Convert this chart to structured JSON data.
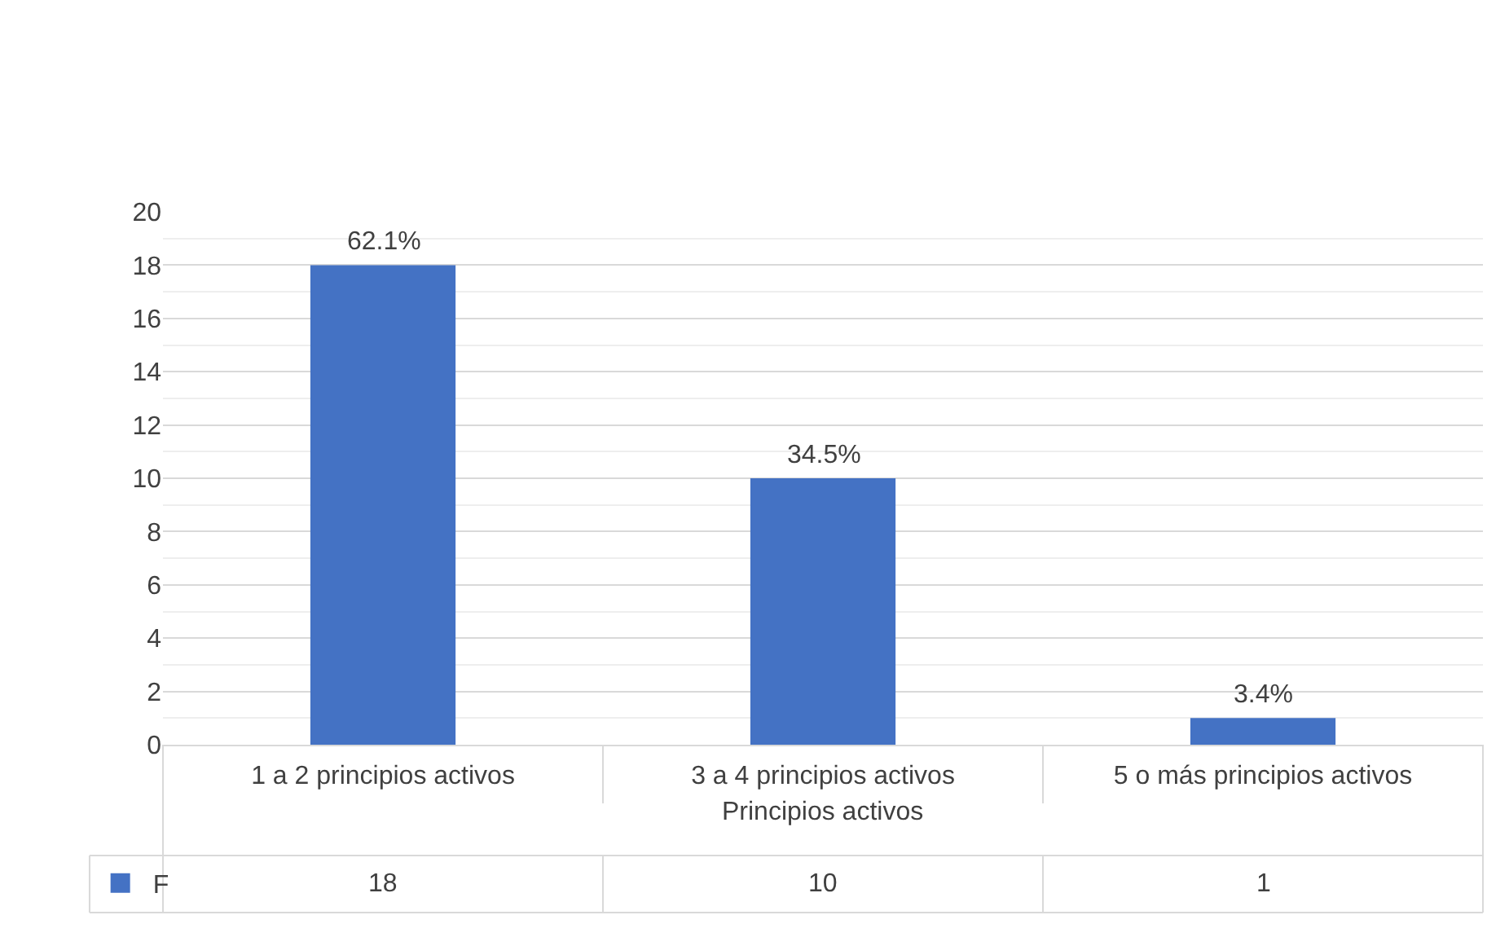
{
  "chart_data": {
    "type": "bar",
    "xlabel": "Principios activos",
    "categories": [
      "1 a 2 principios activos",
      "3 a 4 principios activos",
      "5 o más principios activos"
    ],
    "series": [
      {
        "name": "F",
        "color": "#4472c4",
        "values": [
          18,
          10,
          1
        ]
      }
    ],
    "annotations": [
      {
        "text": "62.1%",
        "x": "1 a 2 principios activos",
        "y": 18
      },
      {
        "text": "34.5%",
        "x": "3 a 4 principios activos",
        "y": 10
      },
      {
        "text": "3.4%",
        "x": "5 o más principios activos",
        "y": 1
      }
    ],
    "ylim": [
      0,
      20
    ],
    "yticks": [
      0,
      2,
      4,
      6,
      8,
      10,
      12,
      14,
      16,
      18,
      20
    ],
    "grid": "y",
    "legend": "bottom left",
    "data_labels": true
  }
}
